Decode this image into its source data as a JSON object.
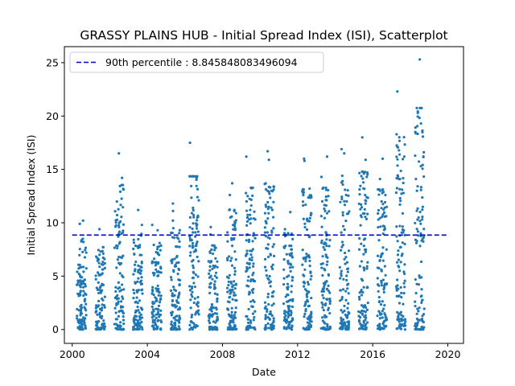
{
  "chart_data": {
    "type": "scatter",
    "title": "GRASSY PLAINS HUB - Initial Spread Index (ISI), Scatterplot",
    "xlabel": "Date",
    "ylabel": "Initial Spread Index (ISI)",
    "xlim": [
      "1999-08-01",
      "2020-11-01"
    ],
    "ylim": [
      -1.3,
      26.5
    ],
    "xticks": [
      "2000",
      "2004",
      "2008",
      "2012",
      "2016",
      "2020"
    ],
    "yticks": [
      0,
      5,
      10,
      15,
      20,
      25
    ],
    "grid": false,
    "legend_position": "top-left",
    "point_color": "#1f77b4",
    "reference_line": {
      "label": "90th percentile : 8.845848083496094",
      "value": 8.845848083496094,
      "color": "#0000cd",
      "style": "dashed",
      "x_range": [
        "2000-01-01",
        "2020-01-01"
      ]
    },
    "seasons": [
      {
        "year": 2000,
        "max": 10.2,
        "highs": [
          10.2,
          9.9,
          8.5,
          7.2
        ]
      },
      {
        "year": 2001,
        "max": 9.4,
        "highs": [
          9.4,
          6.6,
          6.2
        ]
      },
      {
        "year": 2002,
        "max": 16.5,
        "highs": [
          16.5,
          14.2,
          9.6,
          8.7
        ]
      },
      {
        "year": 2003,
        "max": 11.2,
        "highs": [
          11.2,
          9.8,
          8.4,
          7.9
        ]
      },
      {
        "year": 2004,
        "max": 9.8,
        "highs": [
          9.8,
          9.3,
          8.1,
          7.2
        ]
      },
      {
        "year": 2005,
        "max": 11.8,
        "highs": [
          11.8,
          11.1,
          10.2,
          8.6
        ]
      },
      {
        "year": 2006,
        "max": 17.5,
        "highs": [
          17.5,
          12.4,
          12.1,
          10.9,
          10.5
        ]
      },
      {
        "year": 2007,
        "max": 9.6,
        "highs": [
          9.6,
          8.9,
          7.3
        ]
      },
      {
        "year": 2008,
        "max": 13.7,
        "highs": [
          13.7,
          12.6,
          10.9,
          10.5,
          9.1
        ]
      },
      {
        "year": 2009,
        "max": 16.2,
        "highs": [
          16.2,
          12.5,
          12.0,
          11.2,
          10.4
        ]
      },
      {
        "year": 2010,
        "max": 16.7,
        "highs": [
          16.7,
          15.9,
          13.4,
          12.9,
          11.3
        ]
      },
      {
        "year": 2011,
        "max": 11.0,
        "highs": [
          11.0,
          9.4,
          7.5
        ]
      },
      {
        "year": 2012,
        "max": 16.0,
        "highs": [
          16.0,
          15.8,
          13.2,
          12.4,
          10.9
        ]
      },
      {
        "year": 2013,
        "max": 16.2,
        "highs": [
          16.2,
          14.3,
          12.5,
          12.0,
          11.1
        ]
      },
      {
        "year": 2014,
        "max": 16.9,
        "highs": [
          16.9,
          16.5,
          14.4,
          13.9,
          12.6
        ]
      },
      {
        "year": 2015,
        "max": 18.0,
        "highs": [
          18.0,
          15.9,
          14.8,
          14.3,
          12.1
        ]
      },
      {
        "year": 2016,
        "max": 16.0,
        "highs": [
          16.0,
          14.1,
          12.6,
          12.0,
          10.3
        ]
      },
      {
        "year": 2017,
        "max": 22.3,
        "highs": [
          22.3,
          16.2,
          14.1,
          13.1,
          12.3
        ]
      },
      {
        "year": 2018,
        "max": 25.3,
        "highs": [
          25.3,
          19.3,
          15.3,
          14.1,
          13.0
        ]
      }
    ]
  }
}
